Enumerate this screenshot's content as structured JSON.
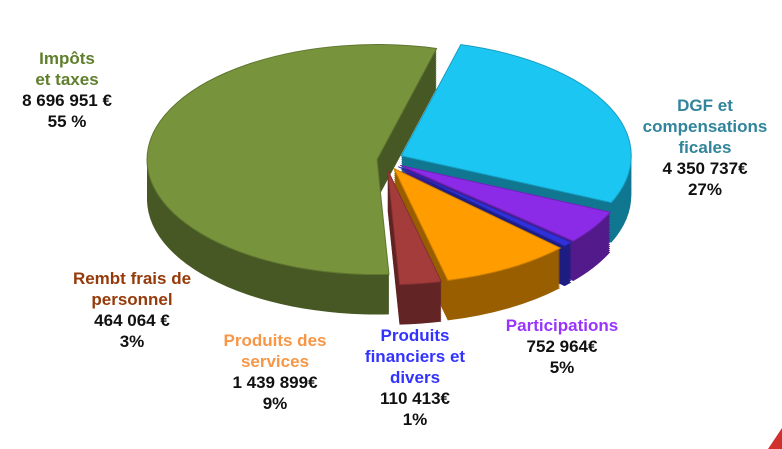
{
  "chart_data": {
    "type": "pie",
    "categories": [
      "DGF et\ncompensations\nficales",
      "Participations",
      "Produits\nfinanciers et\ndivers",
      "Produits des\nservices",
      "Rembt  frais de\npersonnel",
      "Impôts\net  taxes"
    ],
    "values": [
      4350737,
      752964,
      110413,
      1439899,
      464064,
      8696951
    ],
    "value_labels": [
      "4 350 737€",
      "752 964€",
      "110 413€",
      "1 439 899€",
      "464 064 €",
      "8 696 951 €"
    ],
    "percents": [
      27,
      5,
      1,
      9,
      3,
      55
    ],
    "percent_labels": [
      "27%",
      "5%",
      "1%",
      "9%",
      "3%",
      "55 %"
    ],
    "colors": [
      "#1cc6f2",
      "#8b2be8",
      "#3030d8",
      "#ff9c00",
      "#a43c3c",
      "#77933c"
    ],
    "label_colors": [
      "#31849b",
      "#9933ff",
      "#3333ff",
      "#f79646",
      "#953a0a",
      "#5f7f2c"
    ]
  }
}
